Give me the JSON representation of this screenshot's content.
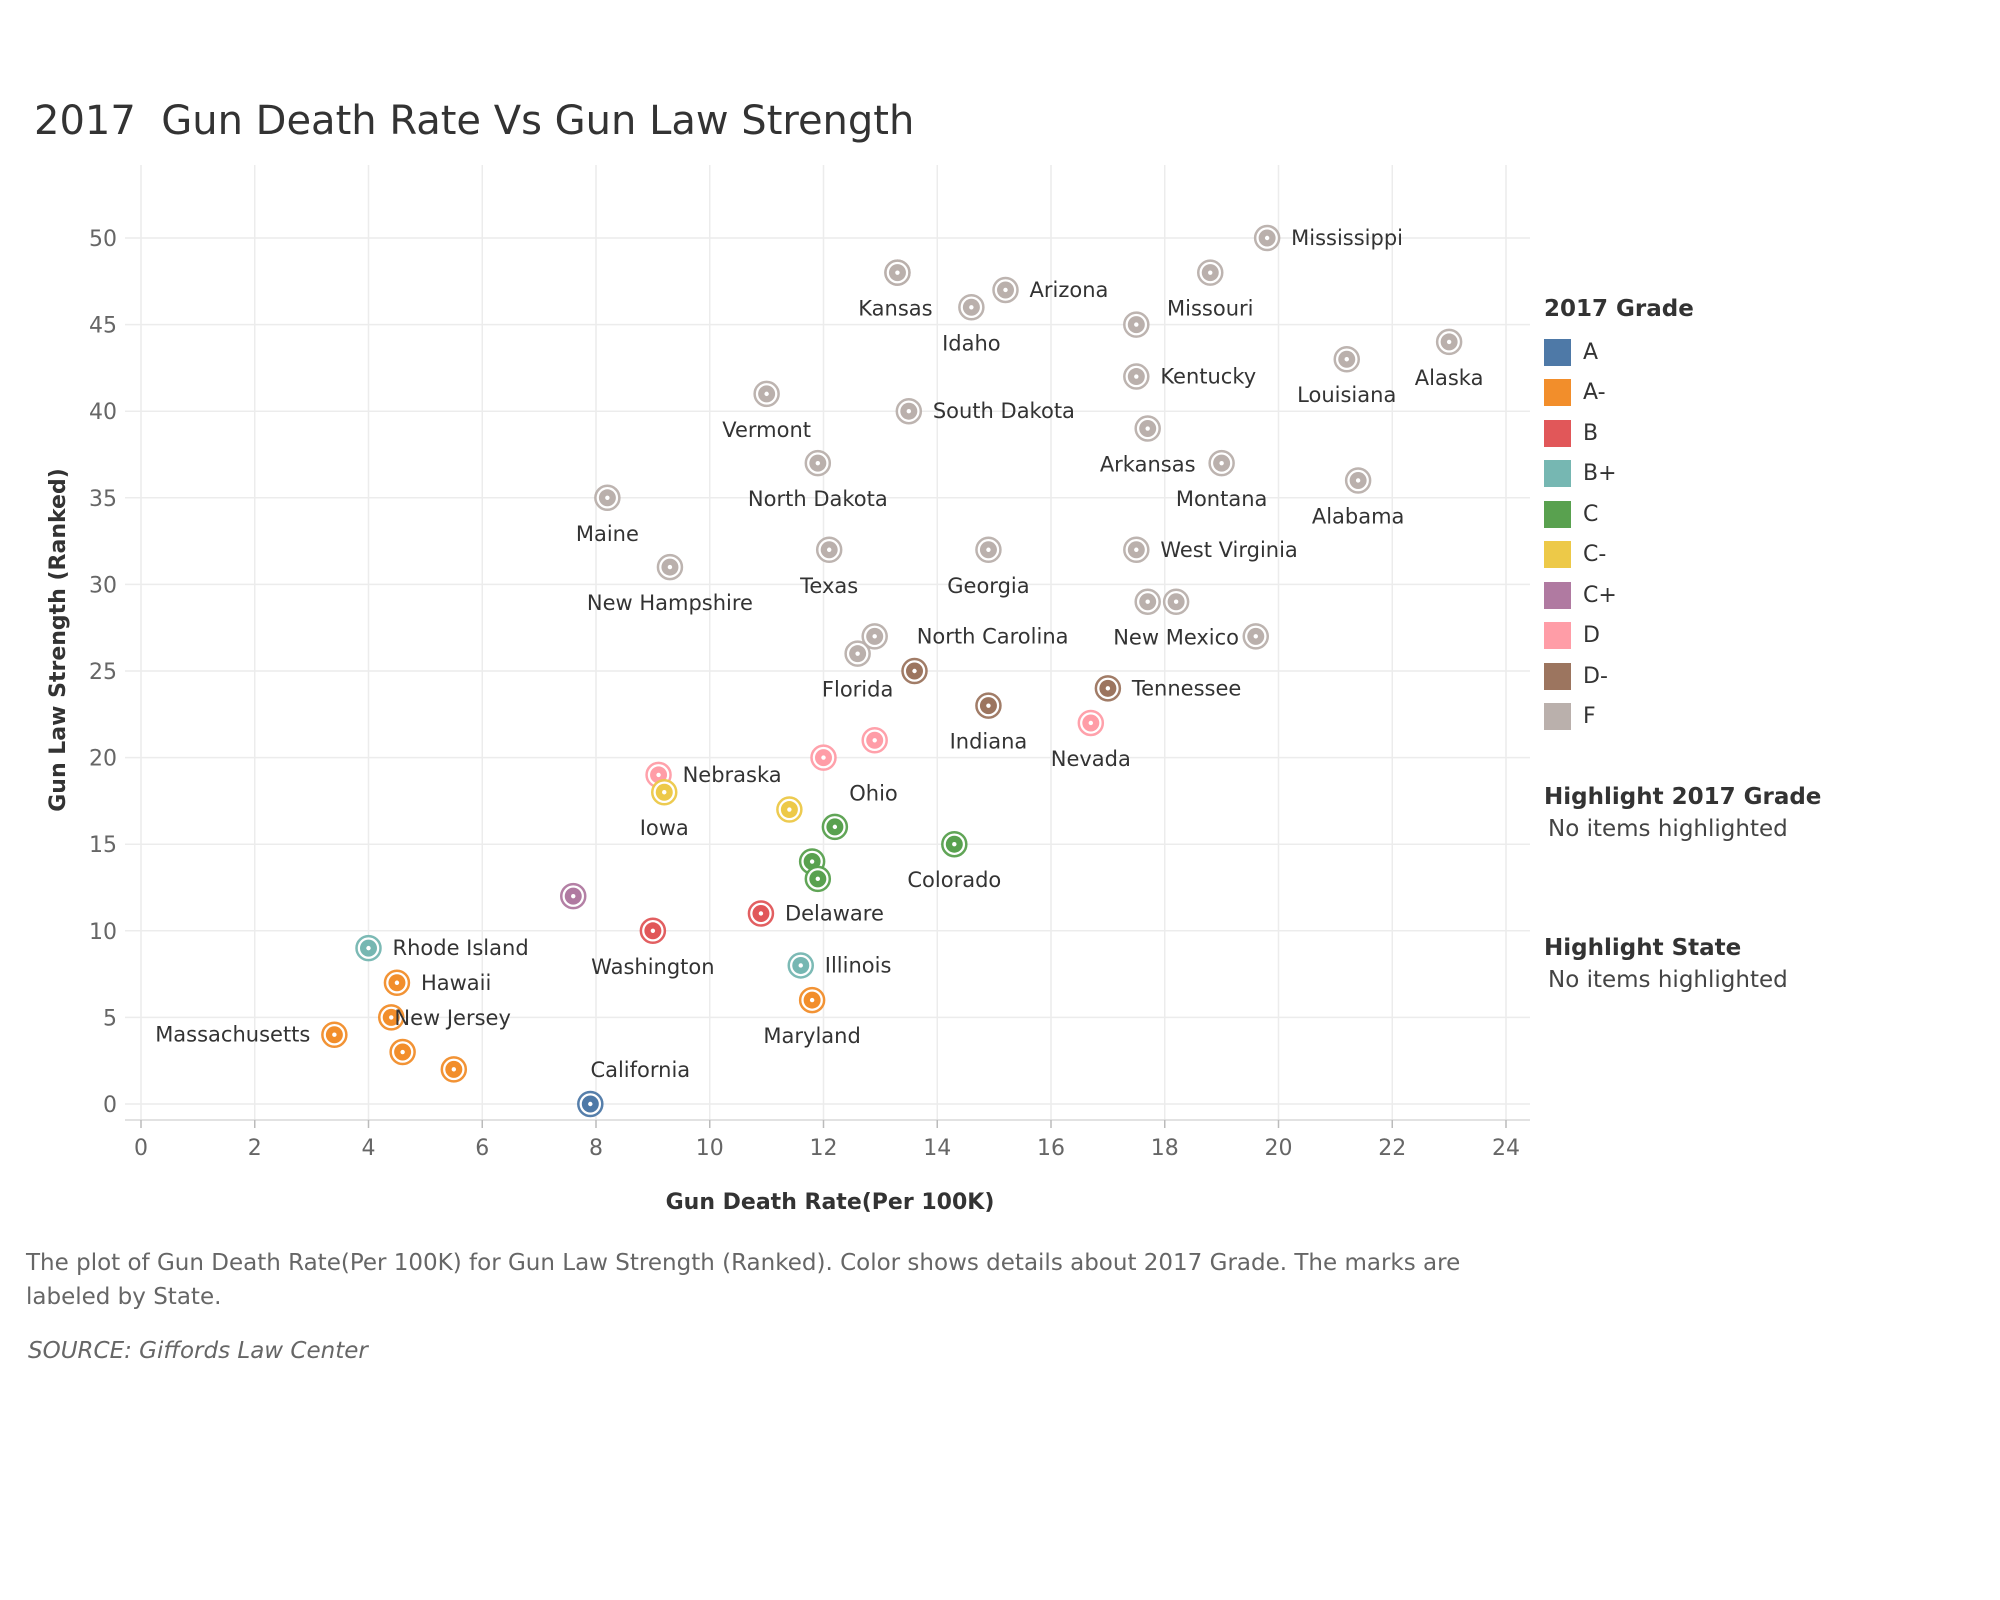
{
  "title": "2017  Gun Death Rate Vs Gun Law Strength",
  "legend": {
    "title": "2017 Grade",
    "items": [
      {
        "label": "A",
        "color": "#4e79a7"
      },
      {
        "label": "A-",
        "color": "#f28e2b"
      },
      {
        "label": "B",
        "color": "#e15759"
      },
      {
        "label": "B+",
        "color": "#76b7b2"
      },
      {
        "label": "C",
        "color": "#59a14f"
      },
      {
        "label": "C-",
        "color": "#edc948"
      },
      {
        "label": "C+",
        "color": "#b07aa1"
      },
      {
        "label": "D",
        "color": "#ff9da7"
      },
      {
        "label": "D-",
        "color": "#9c755f"
      },
      {
        "label": "F",
        "color": "#bab0ac"
      }
    ]
  },
  "highlight_grade": {
    "title": "Highlight 2017 Grade",
    "text": "No items highlighted"
  },
  "highlight_state": {
    "title": "Highlight State",
    "text": "No items highlighted"
  },
  "caption": "The plot of Gun Death Rate(Per 100K) for Gun Law Strength (Ranked).  Color shows details about 2017 Grade.  The marks are labeled by State.",
  "source": "SOURCE: Giffords Law Center",
  "chart_data": {
    "type": "scatter",
    "xlabel": "Gun Death Rate(Per 100K)",
    "ylabel": "Gun Law Strength (Ranked)",
    "xlim": [
      0,
      24
    ],
    "ylim": [
      0,
      50
    ],
    "xticks": [
      0,
      2,
      4,
      6,
      8,
      10,
      12,
      14,
      16,
      18,
      20,
      22,
      24
    ],
    "yticks": [
      0,
      5,
      10,
      15,
      20,
      25,
      30,
      35,
      40,
      45,
      50
    ],
    "grid": true,
    "points": [
      {
        "state": "Mississippi",
        "x": 19.8,
        "y": 50,
        "grade": "F",
        "label_pos": "right"
      },
      {
        "state": "",
        "x": 13.3,
        "y": 48,
        "grade": "F"
      },
      {
        "state": "Kansas",
        "x": 13.3,
        "y": 48,
        "grade": "F",
        "label_pos": "below-left"
      },
      {
        "state": "Missouri",
        "x": 18.8,
        "y": 48,
        "grade": "F",
        "label_pos": "below"
      },
      {
        "state": "Arizona",
        "x": 15.2,
        "y": 47,
        "grade": "F",
        "label_pos": "right"
      },
      {
        "state": "Idaho",
        "x": 14.6,
        "y": 46,
        "grade": "F",
        "label_pos": "below"
      },
      {
        "state": "",
        "x": 17.5,
        "y": 45,
        "grade": "F"
      },
      {
        "state": "Alaska",
        "x": 23.0,
        "y": 44,
        "grade": "F",
        "label_pos": "below"
      },
      {
        "state": "Louisiana",
        "x": 21.2,
        "y": 43,
        "grade": "F",
        "label_pos": "below"
      },
      {
        "state": "Kentucky",
        "x": 17.5,
        "y": 42,
        "grade": "F",
        "label_pos": "right"
      },
      {
        "state": "Vermont",
        "x": 11.0,
        "y": 41,
        "grade": "F",
        "label_pos": "below"
      },
      {
        "state": "South Dakota",
        "x": 13.5,
        "y": 40,
        "grade": "F",
        "label_pos": "right"
      },
      {
        "state": "Arkansas",
        "x": 17.7,
        "y": 39,
        "grade": "F",
        "label_pos": "below"
      },
      {
        "state": "North Dakota",
        "x": 11.9,
        "y": 37,
        "grade": "F",
        "label_pos": "below"
      },
      {
        "state": "Montana",
        "x": 19.0,
        "y": 37,
        "grade": "F",
        "label_pos": "below"
      },
      {
        "state": "Alabama",
        "x": 21.4,
        "y": 36,
        "grade": "F",
        "label_pos": "below"
      },
      {
        "state": "Maine",
        "x": 8.2,
        "y": 35,
        "grade": "F",
        "label_pos": "below"
      },
      {
        "state": "Texas",
        "x": 12.1,
        "y": 32,
        "grade": "F",
        "label_pos": "below"
      },
      {
        "state": "Georgia",
        "x": 14.9,
        "y": 32,
        "grade": "F",
        "label_pos": "below"
      },
      {
        "state": "West Virginia",
        "x": 17.5,
        "y": 32,
        "grade": "F",
        "label_pos": "right"
      },
      {
        "state": "New Hampshire",
        "x": 9.3,
        "y": 31,
        "grade": "F",
        "label_pos": "below"
      },
      {
        "state": "",
        "x": 17.7,
        "y": 29,
        "grade": "F"
      },
      {
        "state": "New Mexico",
        "x": 18.2,
        "y": 29,
        "grade": "F",
        "label_pos": "below"
      },
      {
        "state": "North Carolina",
        "x": 12.9,
        "y": 27,
        "grade": "F",
        "label_pos": "right-far"
      },
      {
        "state": "",
        "x": 19.6,
        "y": 27,
        "grade": "F"
      },
      {
        "state": "Florida",
        "x": 12.6,
        "y": 26,
        "grade": "F",
        "label_pos": "below"
      },
      {
        "state": "",
        "x": 13.6,
        "y": 25,
        "grade": "D-"
      },
      {
        "state": "Tennessee",
        "x": 17.0,
        "y": 24,
        "grade": "D-",
        "label_pos": "right"
      },
      {
        "state": "Indiana",
        "x": 14.9,
        "y": 23,
        "grade": "D-",
        "label_pos": "below"
      },
      {
        "state": "Nevada",
        "x": 16.7,
        "y": 22,
        "grade": "D",
        "label_pos": "below"
      },
      {
        "state": "",
        "x": 12.9,
        "y": 21,
        "grade": "D"
      },
      {
        "state": "Ohio",
        "x": 12.0,
        "y": 20,
        "grade": "D",
        "label_pos": "below-right"
      },
      {
        "state": "Nebraska",
        "x": 9.1,
        "y": 19,
        "grade": "D",
        "label_pos": "right"
      },
      {
        "state": "Iowa",
        "x": 9.2,
        "y": 18,
        "grade": "C-",
        "label_pos": "below"
      },
      {
        "state": "",
        "x": 11.4,
        "y": 17,
        "grade": "C-"
      },
      {
        "state": "",
        "x": 12.2,
        "y": 16,
        "grade": "C"
      },
      {
        "state": "Colorado",
        "x": 14.3,
        "y": 15,
        "grade": "C",
        "label_pos": "below"
      },
      {
        "state": "",
        "x": 11.8,
        "y": 14,
        "grade": "C"
      },
      {
        "state": "",
        "x": 11.9,
        "y": 13,
        "grade": "C"
      },
      {
        "state": "",
        "x": 7.6,
        "y": 12,
        "grade": "C+"
      },
      {
        "state": "Delaware",
        "x": 10.9,
        "y": 11,
        "grade": "B",
        "label_pos": "right"
      },
      {
        "state": "Washington",
        "x": 9.0,
        "y": 10,
        "grade": "B",
        "label_pos": "below"
      },
      {
        "state": "Rhode Island",
        "x": 4.0,
        "y": 9,
        "grade": "B+",
        "label_pos": "right"
      },
      {
        "state": "Illinois",
        "x": 11.6,
        "y": 8,
        "grade": "B+",
        "label_pos": "right"
      },
      {
        "state": "Hawaii",
        "x": 4.5,
        "y": 7,
        "grade": "A-",
        "label_pos": "right"
      },
      {
        "state": "Maryland",
        "x": 11.8,
        "y": 6,
        "grade": "A-",
        "label_pos": "below"
      },
      {
        "state": "",
        "x": 4.4,
        "y": 5,
        "grade": "A-"
      },
      {
        "state": "Massachusetts",
        "x": 3.4,
        "y": 4,
        "grade": "A-",
        "label_pos": "left"
      },
      {
        "state": "New Jersey",
        "x": 4.6,
        "y": 3,
        "grade": "A-",
        "label_pos": "above-right"
      },
      {
        "state": "",
        "x": 5.5,
        "y": 2,
        "grade": "A-"
      },
      {
        "state": "California",
        "x": 7.9,
        "y": 0,
        "grade": "A",
        "label_pos": "above-right"
      }
    ]
  }
}
